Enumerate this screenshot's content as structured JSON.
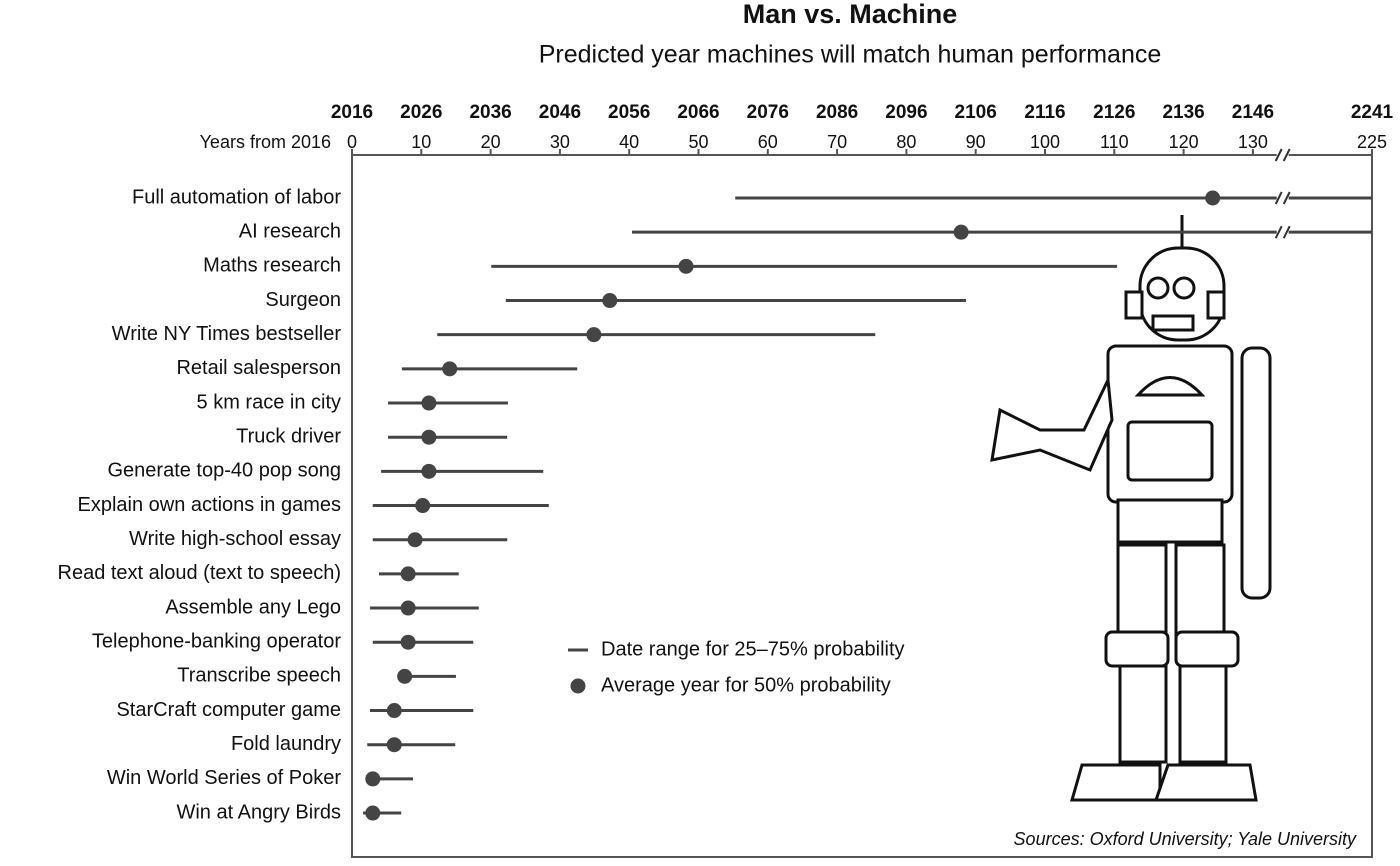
{
  "chart_data": {
    "type": "range-dot",
    "title": "Man vs. Machine",
    "subtitle": "Predicted year machines will match human performance",
    "xlabel": "Years from 2016",
    "source": "Sources: Oxford University; Yale University",
    "categories": [
      "Full automation of labor",
      "AI research",
      "Maths research",
      "Surgeon",
      "Write NY Times bestseller",
      "Retail salesperson",
      "5 km race in city",
      "Truck driver",
      "Generate top-40 pop song",
      "Explain own actions in games",
      "Write high-school essay",
      "Read text aloud (text to speech)",
      "Assemble any Lego",
      "Telephone-banking operator",
      "Transcribe speech",
      "StarCraft computer game",
      "Fold laundry",
      "Win World Series of Poker",
      "Win at Angry Birds"
    ],
    "series": [
      {
        "name": "Date range for 25–75% probability",
        "color": "#444444",
        "low": [
          55.3,
          40.4,
          20.1,
          22.2,
          12.3,
          7.2,
          5.2,
          5.2,
          4.2,
          3.0,
          3.0,
          3.9,
          2.6,
          3.0,
          6.9,
          2.6,
          2.2,
          2.2,
          1.6
        ],
        "high": [
          225,
          225,
          110.4,
          88.6,
          75.5,
          32.5,
          22.5,
          22.4,
          27.6,
          28.4,
          22.4,
          15.4,
          18.3,
          17.5,
          15.0,
          17.5,
          14.9,
          8.8,
          7.1
        ]
      },
      {
        "name": "Average year for 50% probability",
        "color": "#444444",
        "values": [
          124.2,
          87.9,
          48.2,
          37.2,
          34.9,
          14.1,
          11.1,
          11.1,
          11.1,
          10.2,
          9.1,
          8.1,
          8.1,
          8.1,
          7.6,
          6.1,
          6.1,
          3.0,
          3.0
        ]
      }
    ],
    "xlim": [
      0,
      225
    ],
    "xbreak": [
      133,
      150
    ],
    "xticks": [
      0,
      10,
      20,
      30,
      40,
      50,
      60,
      70,
      80,
      90,
      100,
      110,
      120,
      130,
      225
    ],
    "x2lim": [
      2016,
      2241
    ],
    "x2ticks": [
      2016,
      2026,
      2036,
      2046,
      2056,
      2066,
      2076,
      2086,
      2096,
      2106,
      2116,
      2126,
      2136,
      2146,
      2241
    ]
  }
}
